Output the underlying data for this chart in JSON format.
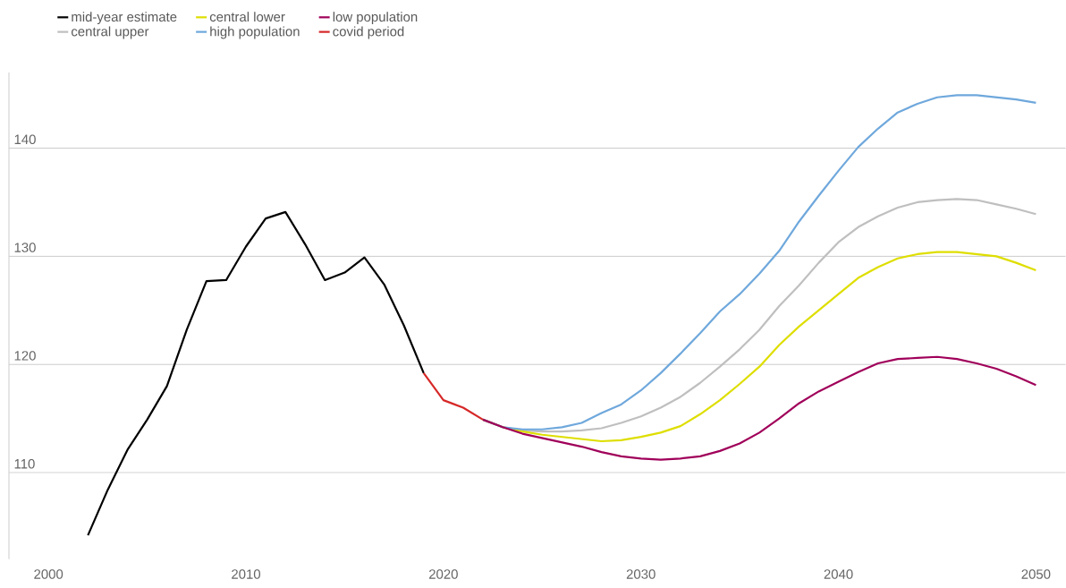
{
  "chart_data": {
    "type": "line",
    "xlim": [
      1998,
      2051.5
    ],
    "ylim": [
      102,
      147
    ],
    "xticks": [
      2000,
      2010,
      2020,
      2030,
      2040,
      2050
    ],
    "yticks": [
      110,
      120,
      130,
      140
    ],
    "grid": "y",
    "legend": "top left",
    "line_style": "solid",
    "marker": "none",
    "series": [
      {
        "name": "mid-year estimate",
        "color": "#000000",
        "x": [
          2002,
          2003,
          2004,
          2005,
          2006,
          2007,
          2008,
          2009,
          2010,
          2011,
          2012,
          2013,
          2014,
          2015,
          2016,
          2017,
          2018,
          2019
        ],
        "values": [
          104.2,
          108.4,
          112.1,
          114.9,
          118.0,
          123.2,
          127.7,
          127.8,
          130.9,
          133.5,
          134.1,
          131.1,
          127.8,
          128.5,
          129.9,
          127.4,
          123.6,
          119.2
        ]
      },
      {
        "name": "central upper",
        "color": "#bfbfbf",
        "x": [
          2022,
          2023,
          2024,
          2025,
          2026,
          2027,
          2028,
          2029,
          2030,
          2031,
          2032,
          2033,
          2034,
          2035,
          2036,
          2037,
          2038,
          2039,
          2040,
          2041,
          2042,
          2043,
          2044,
          2045,
          2046,
          2047,
          2048,
          2049,
          2050
        ],
        "values": [
          114.9,
          114.2,
          113.9,
          113.8,
          113.8,
          113.9,
          114.1,
          114.6,
          115.2,
          116.0,
          117.0,
          118.3,
          119.8,
          121.4,
          123.2,
          125.4,
          127.3,
          129.4,
          131.3,
          132.7,
          133.7,
          134.5,
          135.0,
          135.2,
          135.3,
          135.2,
          134.8,
          134.4,
          133.9
        ]
      },
      {
        "name": "central lower",
        "color": "#dede00",
        "x": [
          2022,
          2023,
          2024,
          2025,
          2026,
          2027,
          2028,
          2029,
          2030,
          2031,
          2032,
          2033,
          2034,
          2035,
          2036,
          2037,
          2038,
          2039,
          2040,
          2041,
          2042,
          2043,
          2044,
          2045,
          2046,
          2047,
          2048,
          2049,
          2050
        ],
        "values": [
          114.9,
          114.2,
          113.8,
          113.5,
          113.3,
          113.1,
          112.9,
          113.0,
          113.3,
          113.7,
          114.3,
          115.4,
          116.7,
          118.2,
          119.8,
          121.8,
          123.5,
          125.0,
          126.5,
          128.0,
          129.0,
          129.8,
          130.2,
          130.4,
          130.4,
          130.2,
          130.0,
          129.4,
          128.7
        ]
      },
      {
        "name": "high population",
        "color": "#6fa8dc",
        "x": [
          2022,
          2023,
          2024,
          2025,
          2026,
          2027,
          2028,
          2029,
          2030,
          2031,
          2032,
          2033,
          2034,
          2035,
          2036,
          2037,
          2038,
          2039,
          2040,
          2041,
          2042,
          2043,
          2044,
          2045,
          2046,
          2047,
          2048,
          2049,
          2050
        ],
        "values": [
          114.9,
          114.2,
          114.0,
          114.0,
          114.2,
          114.6,
          115.5,
          116.3,
          117.6,
          119.2,
          121.0,
          122.9,
          124.9,
          126.5,
          128.4,
          130.5,
          133.2,
          135.6,
          137.9,
          140.1,
          141.8,
          143.3,
          144.1,
          144.7,
          144.9,
          144.9,
          144.7,
          144.5,
          144.2
        ]
      },
      {
        "name": "low population",
        "color": "#a0005a",
        "x": [
          2022,
          2023,
          2024,
          2025,
          2026,
          2027,
          2028,
          2029,
          2030,
          2031,
          2032,
          2033,
          2034,
          2035,
          2036,
          2037,
          2038,
          2039,
          2040,
          2041,
          2042,
          2043,
          2044,
          2045,
          2046,
          2047,
          2048,
          2049,
          2050
        ],
        "values": [
          114.9,
          114.2,
          113.6,
          113.2,
          112.8,
          112.4,
          111.9,
          111.5,
          111.3,
          111.2,
          111.3,
          111.5,
          112.0,
          112.7,
          113.7,
          115.0,
          116.4,
          117.5,
          118.4,
          119.3,
          120.1,
          120.5,
          120.6,
          120.7,
          120.5,
          120.1,
          119.6,
          118.9,
          118.1
        ]
      },
      {
        "name": "covid period",
        "color": "#d62828",
        "x": [
          2019,
          2020,
          2021,
          2022
        ],
        "values": [
          119.2,
          116.7,
          116.0,
          114.9
        ]
      }
    ]
  }
}
